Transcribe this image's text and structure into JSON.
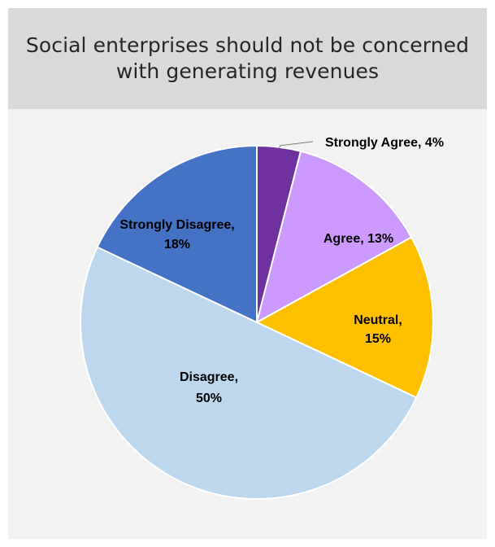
{
  "chart_data": {
    "type": "pie",
    "title": "Social enterprises should not be concerned with generating revenues",
    "start_angle_deg": 0,
    "direction": "clockwise",
    "slices": [
      {
        "label": "Strongly Agree",
        "value": 4,
        "display": [
          "Strongly Agree, 4%"
        ],
        "color": "#7030a0"
      },
      {
        "label": "Agree",
        "value": 13,
        "display": [
          "Agree, 13%"
        ],
        "color": "#cc99ff"
      },
      {
        "label": "Neutral",
        "value": 15,
        "display": [
          "Neutral,",
          "15%"
        ],
        "color": "#ffc000"
      },
      {
        "label": "Disagree",
        "value": 50,
        "display": [
          "Disagree,",
          "50%"
        ],
        "color": "#bdd7ee"
      },
      {
        "label": "Strongly Disagree",
        "value": 18,
        "display": [
          "Strongly Disagree,",
          "18%"
        ],
        "color": "#4472c4"
      }
    ],
    "slice_border_color": "#ffffff",
    "leader_line_color": "#7f7f7f"
  }
}
